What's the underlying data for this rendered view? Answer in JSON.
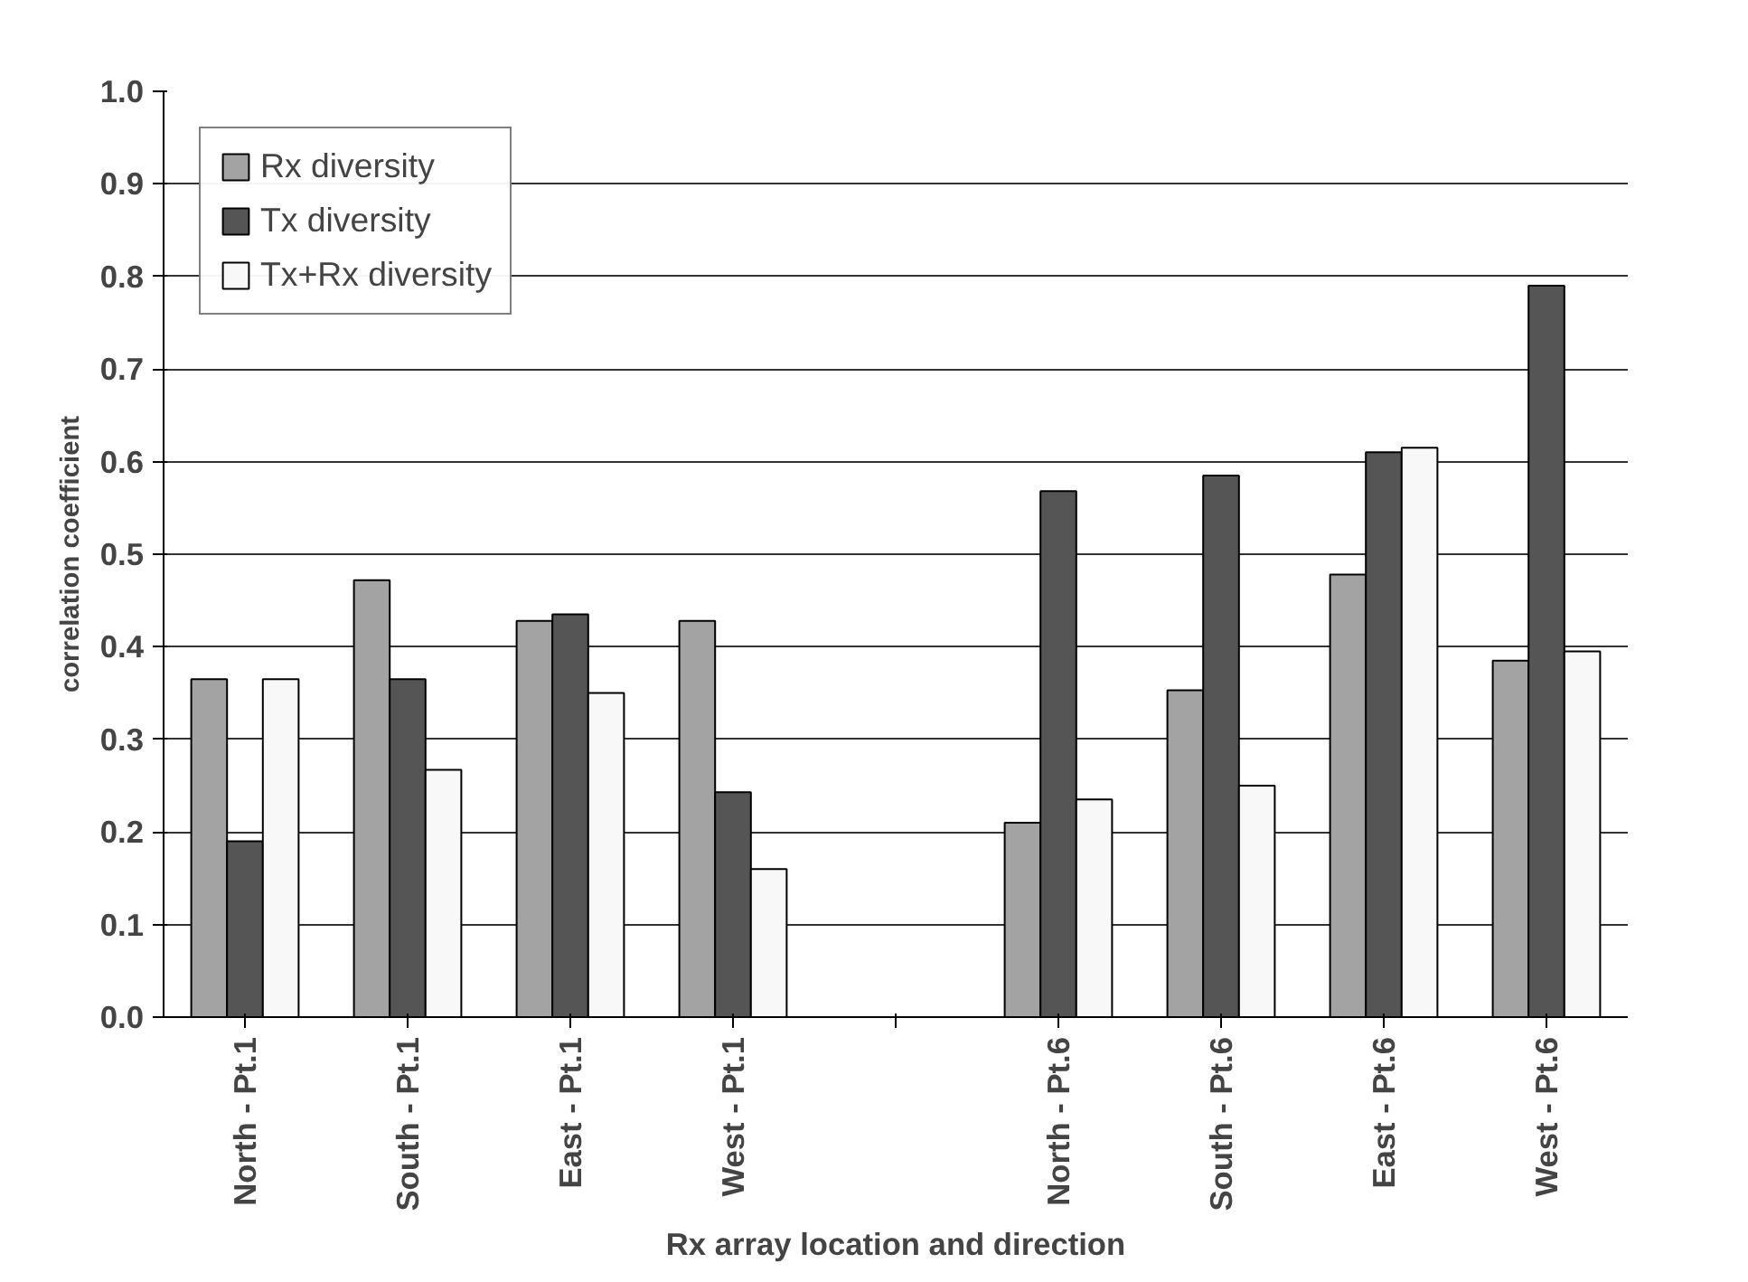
{
  "chart_data": {
    "type": "bar",
    "xlabel": "Rx array location and direction",
    "ylabel": "correlation coefficient",
    "categories": [
      "North - Pt.1",
      "South - Pt.1",
      "East - Pt.1",
      "West - Pt.1",
      null,
      "North - Pt.6",
      "South - Pt.6",
      "East - Pt.6",
      "West - Pt.6"
    ],
    "series": [
      {
        "name": "Rx diversity",
        "color": "#a3a3a3",
        "values": [
          0.365,
          0.472,
          0.428,
          0.428,
          null,
          0.21,
          0.353,
          0.478,
          0.385
        ]
      },
      {
        "name": "Tx diversity",
        "color": "#555555",
        "values": [
          0.19,
          0.365,
          0.435,
          0.243,
          null,
          0.568,
          0.585,
          0.61,
          0.79
        ]
      },
      {
        "name": "Tx+Rx diversity",
        "color": "#f8f8f8",
        "values": [
          0.365,
          0.267,
          0.35,
          0.16,
          null,
          0.235,
          0.25,
          0.615,
          0.395
        ]
      }
    ],
    "ylim": [
      0,
      1
    ],
    "yticks": [
      {
        "value": 0,
        "label": "0.0"
      },
      0.1,
      0.2,
      0.3,
      0.4,
      0.5,
      0.6,
      0.7,
      0.8,
      0.9,
      {
        "value": 1,
        "label": "1.0"
      }
    ],
    "grid": "y",
    "legend": "top left"
  }
}
